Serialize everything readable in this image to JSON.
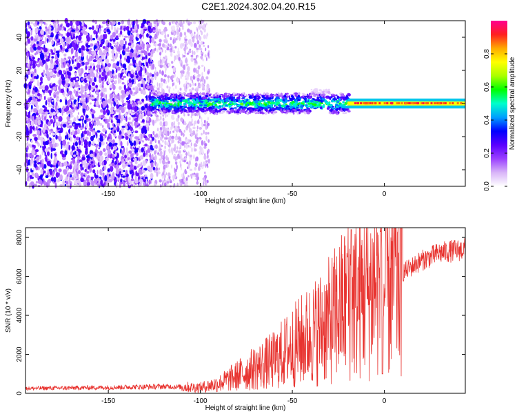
{
  "title": "C2E1.2024.302.04.20.R15",
  "chart_data": [
    {
      "type": "heatmap",
      "xlabel": "Height of straight line (km)",
      "ylabel": "Frequency (Hz)",
      "xlim": [
        -195,
        44
      ],
      "ylim": [
        -50,
        50
      ],
      "xticks": [
        -150,
        -100,
        -50,
        0
      ],
      "xtick_labels": [
        "-150",
        "-100",
        "-50",
        "0"
      ],
      "yticks": [
        -40,
        -20,
        0,
        20,
        40
      ],
      "ytick_labels": [
        "-40",
        "-20",
        "0",
        "20",
        "40"
      ],
      "colorbar": {
        "label": "Normalized spectral amplitude",
        "range": [
          0,
          1
        ],
        "ticks": [
          0.0,
          0.2,
          0.4,
          0.6,
          0.8
        ],
        "tick_labels": [
          "0.0",
          "0.2",
          "0.4",
          "0.6",
          "0.8"
        ],
        "colormap": [
          "#ffffff",
          "#d8b4f8",
          "#9a40ff",
          "#5a00ff",
          "#0000ff",
          "#00a0ff",
          "#00ffcc",
          "#00ff00",
          "#aaff00",
          "#ffff00",
          "#ffaa00",
          "#ff2020",
          "#ff0090"
        ]
      },
      "regions": [
        {
          "x_range": [
            -195,
            -125
          ],
          "description_level": 0.25
        },
        {
          "x_range": [
            -125,
            -95
          ],
          "description_level": 0.12
        },
        {
          "x_range": [
            -125,
            -20
          ],
          "line_freq": 0,
          "level": 0.45
        },
        {
          "x_range": [
            -20,
            44
          ],
          "line_freq": 0,
          "level": 0.85
        }
      ],
      "grid": false
    },
    {
      "type": "line",
      "xlabel": "Height of straight line (km)",
      "ylabel": "SNR (10 * v/v)",
      "xlim": [
        -195,
        44
      ],
      "ylim": [
        0,
        8500
      ],
      "xticks": [
        -150,
        -100,
        -50,
        0
      ],
      "xtick_labels": [
        "-150",
        "-100",
        "-50",
        "0"
      ],
      "yticks": [
        0,
        2000,
        4000,
        6000,
        8000
      ],
      "ytick_labels": [
        "0",
        "2000",
        "4000",
        "6000",
        "8000"
      ],
      "color": "#e8332f",
      "envelope_x": [
        -195,
        -150,
        -120,
        -100,
        -90,
        -80,
        -70,
        -60,
        -50,
        -40,
        -30,
        -25,
        -20,
        -15,
        -10,
        -5,
        0,
        10,
        20,
        30,
        44
      ],
      "envelope_y": [
        250,
        300,
        350,
        300,
        500,
        900,
        1300,
        1700,
        2400,
        3000,
        3700,
        4200,
        4800,
        5000,
        5200,
        5500,
        5300,
        6200,
        6800,
        7200,
        7400
      ],
      "spikes": [
        {
          "x": -18,
          "y": 8400
        },
        {
          "x": -2,
          "y": 8300
        },
        {
          "x": -20,
          "y": 7000
        }
      ],
      "grid": false
    }
  ]
}
